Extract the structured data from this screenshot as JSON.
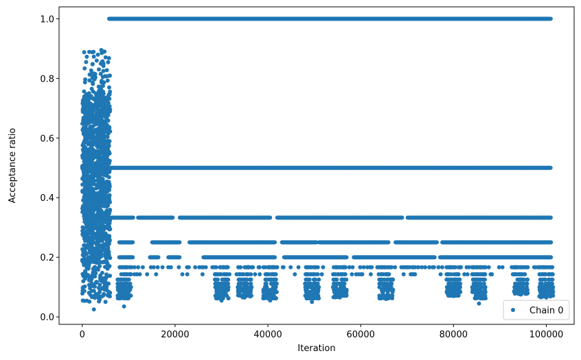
{
  "chart_data": {
    "type": "scatter",
    "title": "",
    "xlabel": "Iteration",
    "ylabel": "Acceptance ratio",
    "xlim": [
      -5000,
      106000
    ],
    "ylim": [
      -0.025,
      1.04
    ],
    "xticks": [
      0,
      20000,
      40000,
      60000,
      80000,
      100000
    ],
    "xtick_labels": [
      "0",
      "20000",
      "40000",
      "60000",
      "80000",
      "100000"
    ],
    "yticks": [
      0.0,
      0.2,
      0.4,
      0.6,
      0.8,
      1.0
    ],
    "ytick_labels": [
      "0.0",
      "0.2",
      "0.4",
      "0.6",
      "0.8",
      "1.0"
    ],
    "grid": false,
    "legend_position": "bottom-right",
    "series": [
      {
        "name": "Chain 0",
        "color": "#1f77b4",
        "marker": "circle",
        "description_of_structure": "burn-in phase 0-6000 with dense continuous spread 0.03-0.9; afterwards discrete acceptance levels at 1, 1/2, 1/3, 1/4, 1/5, 1/6, 1/7 ... with sparse lower values",
        "burn_in": {
          "x_range": [
            0,
            6000
          ],
          "y_range": [
            0.025,
            0.895
          ]
        },
        "levels": [
          {
            "y": 1.0,
            "x_range": [
              5800,
              101000
            ]
          },
          {
            "y": 0.5,
            "x_range": [
              0,
              101000
            ]
          },
          {
            "y": 0.333,
            "x_range": [
              5800,
              101000
            ],
            "gaps": [
              [
                11000,
                12000
              ],
              [
                19500,
                21000
              ],
              [
                40500,
                42000
              ],
              [
                69000,
                70000
              ]
            ]
          },
          {
            "y": 0.25,
            "x_range": [
              8000,
              101000
            ],
            "gaps": [
              [
                11000,
                15000
              ],
              [
                21000,
                23000
              ],
              [
                41500,
                43000
              ],
              [
                50500,
                51000
              ],
              [
                66000,
                67500
              ],
              [
                76500,
                77500
              ]
            ]
          },
          {
            "y": 0.2,
            "x_range": [
              8000,
              101000
            ],
            "gaps": [
              [
                11000,
                14500
              ],
              [
                16500,
                18500
              ],
              [
                21000,
                26000
              ],
              [
                41500,
                43500
              ],
              [
                57000,
                58500
              ],
              [
                76000,
                77000
              ]
            ]
          }
        ],
        "low_clusters": [
          {
            "x_center": 9000,
            "y_min": 0.035
          },
          {
            "x_center": 30000,
            "y_min": 0.055
          },
          {
            "x_center": 35000,
            "y_min": 0.065
          },
          {
            "x_center": 40500,
            "y_min": 0.055
          },
          {
            "x_center": 49500,
            "y_min": 0.05
          },
          {
            "x_center": 55500,
            "y_min": 0.065
          },
          {
            "x_center": 65500,
            "y_min": 0.06
          },
          {
            "x_center": 80000,
            "y_min": 0.07
          },
          {
            "x_center": 85500,
            "y_min": 0.045
          },
          {
            "x_center": 94500,
            "y_min": 0.075
          },
          {
            "x_center": 100000,
            "y_min": 0.065
          }
        ]
      }
    ]
  }
}
